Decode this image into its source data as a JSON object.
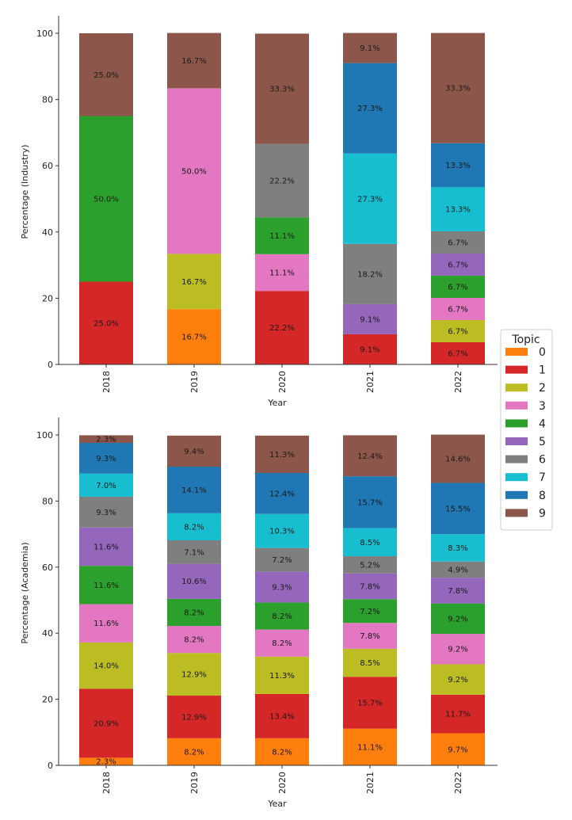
{
  "legend": {
    "title": "Topic",
    "entries": [
      {
        "label": "0",
        "color": "#ff7f0e"
      },
      {
        "label": "1",
        "color": "#d62728"
      },
      {
        "label": "2",
        "color": "#bcbd22"
      },
      {
        "label": "3",
        "color": "#e377c2"
      },
      {
        "label": "4",
        "color": "#2ca02c"
      },
      {
        "label": "5",
        "color": "#9467bd"
      },
      {
        "label": "6",
        "color": "#7f7f7f"
      },
      {
        "label": "7",
        "color": "#17becf"
      },
      {
        "label": "8",
        "color": "#1f77b4"
      },
      {
        "label": "9",
        "color": "#8c564b"
      }
    ]
  },
  "chart_data": [
    {
      "type": "bar",
      "stacked": true,
      "categories": [
        "2018",
        "2019",
        "2020",
        "2021",
        "2022"
      ],
      "xlabel": "Year",
      "ylabel": "Percentage (Industry)",
      "ylim": [
        0,
        100
      ],
      "yticks": [
        "0",
        "20",
        "40",
        "60",
        "80",
        "100"
      ],
      "series": [
        {
          "name": "0",
          "values": [
            0,
            16.7,
            0,
            0,
            0
          ]
        },
        {
          "name": "1",
          "values": [
            25.0,
            0,
            22.2,
            9.1,
            6.7
          ]
        },
        {
          "name": "2",
          "values": [
            0,
            16.7,
            0,
            0,
            6.7
          ]
        },
        {
          "name": "3",
          "values": [
            0,
            50.0,
            11.1,
            0,
            6.7
          ]
        },
        {
          "name": "4",
          "values": [
            50.0,
            0,
            11.1,
            0,
            6.7
          ]
        },
        {
          "name": "5",
          "values": [
            0,
            0,
            0,
            9.1,
            6.7
          ]
        },
        {
          "name": "6",
          "values": [
            0,
            0,
            22.2,
            18.2,
            6.7
          ]
        },
        {
          "name": "7",
          "values": [
            0,
            0,
            0,
            27.3,
            13.3
          ]
        },
        {
          "name": "8",
          "values": [
            0,
            0,
            0,
            27.3,
            13.3
          ]
        },
        {
          "name": "9",
          "values": [
            25.0,
            16.7,
            33.3,
            9.1,
            33.3
          ]
        }
      ]
    },
    {
      "type": "bar",
      "stacked": true,
      "categories": [
        "2018",
        "2019",
        "2020",
        "2021",
        "2022"
      ],
      "xlabel": "Year",
      "ylabel": "Percentage (Academia)",
      "ylim": [
        0,
        100
      ],
      "yticks": [
        "0",
        "20",
        "40",
        "60",
        "80",
        "100"
      ],
      "series": [
        {
          "name": "0",
          "values": [
            2.3,
            8.2,
            8.2,
            11.1,
            9.7
          ]
        },
        {
          "name": "1",
          "values": [
            20.9,
            12.9,
            13.4,
            15.7,
            11.7
          ]
        },
        {
          "name": "2",
          "values": [
            14.0,
            12.9,
            11.3,
            8.5,
            9.2
          ]
        },
        {
          "name": "3",
          "values": [
            11.6,
            8.2,
            8.2,
            7.8,
            9.2
          ]
        },
        {
          "name": "4",
          "values": [
            11.6,
            8.2,
            8.2,
            7.2,
            9.2
          ]
        },
        {
          "name": "5",
          "values": [
            11.6,
            10.6,
            9.3,
            7.8,
            7.8
          ]
        },
        {
          "name": "6",
          "values": [
            9.3,
            7.1,
            7.2,
            5.2,
            4.9
          ]
        },
        {
          "name": "7",
          "values": [
            7.0,
            8.2,
            10.3,
            8.5,
            8.3
          ]
        },
        {
          "name": "8",
          "values": [
            9.3,
            14.1,
            12.4,
            15.7,
            15.5
          ]
        },
        {
          "name": "9",
          "values": [
            2.3,
            9.4,
            11.3,
            12.4,
            14.6
          ]
        }
      ]
    }
  ]
}
